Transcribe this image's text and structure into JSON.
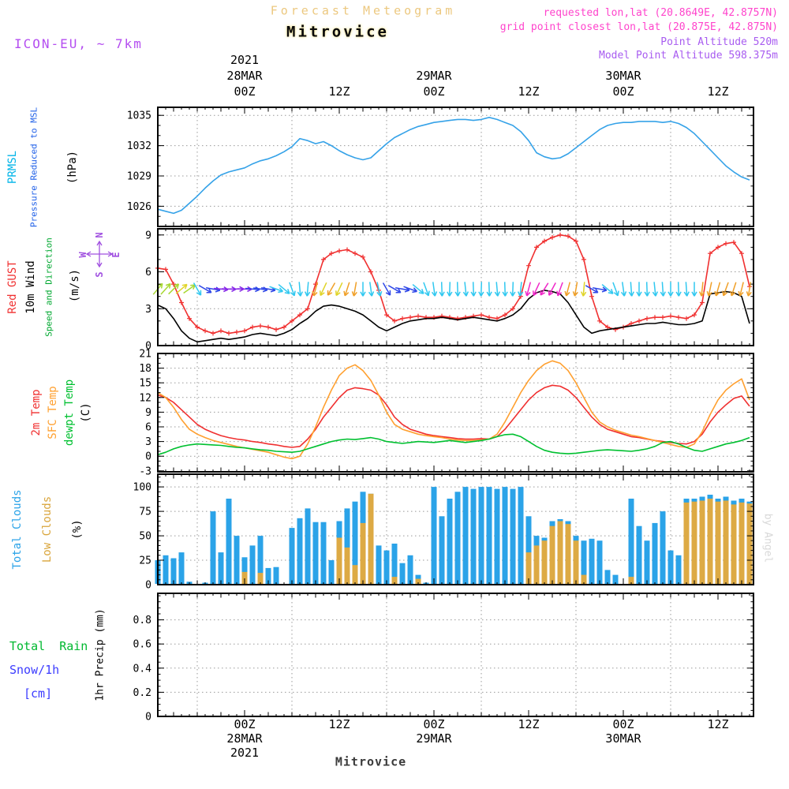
{
  "header": {
    "title": "Forecast Meteogram",
    "station": "Mitrovice",
    "model": "ICON-EU, ~ 7km",
    "requested": "requested lon,lat (20.8649E, 42.8757N)",
    "grid_point": "grid point closest lon,lat (20.875E, 42.875N)",
    "point_altitude": "Point Altitude 520m",
    "model_point_altitude": "Model Point Altitude 598.375m"
  },
  "footer": {
    "station": "Mitrovice",
    "watermark": "by Angel"
  },
  "axes": {
    "year": "2021",
    "x_unit": "hours from 28MAR2021 00Z",
    "time_ticks": [
      {
        "t": 0,
        "label": "00Z"
      },
      {
        "t": 12,
        "label": "12Z"
      },
      {
        "t": 24,
        "label": "00Z"
      },
      {
        "t": 36,
        "label": "12Z"
      },
      {
        "t": 48,
        "label": "00Z"
      },
      {
        "t": 60,
        "label": "12Z"
      }
    ],
    "date_ticks": [
      {
        "t": 0,
        "label": "28MAR"
      },
      {
        "t": 24,
        "label": "29MAR"
      },
      {
        "t": 48,
        "label": "30MAR"
      }
    ]
  },
  "labels": {
    "pressure": {
      "l1": "PRMSL",
      "l2": "Pressure Reduced to MSL",
      "unit": "(hPa)"
    },
    "wind": {
      "l1": "Red GUST",
      "l2": "10m Wind",
      "l3": "Speed and Direction",
      "unit": "(m/s)",
      "compass": {
        "n": "N",
        "e": "E",
        "s": "S",
        "w": "W"
      }
    },
    "temp": {
      "l1": "2m Temp",
      "l2": "SFC Temp",
      "l3": "dewpt Temp",
      "unit": "(C)"
    },
    "clouds": {
      "l1": "Total Clouds",
      "l2": "Low Clouds",
      "unit": "(%)"
    },
    "precip": {
      "l1": "Total  Rain",
      "l2": "Snow/1h",
      "l3": "[cm]",
      "axis": "1hr Precip (mm)"
    }
  },
  "colors": {
    "background": "#ffffff",
    "pressure_line": "#35a2e8",
    "gust": "#f03030",
    "wind_speed": "#000000",
    "temp_2m": "#f03030",
    "temp_sfc": "#ffa030",
    "temp_dewpt": "#00c030",
    "total_clouds": "#2ba3e8",
    "low_clouds": "#ddaa44",
    "rain": "#00b830",
    "snow": "#3c3cff",
    "magenta_header": "#ff44cc",
    "purple_header": "#a85cf0",
    "model_label": "#b44df0",
    "title_tan": "#ecc87f",
    "compass": "#a050e0",
    "watermark": "#d9d9d9"
  },
  "chart_data": [
    {
      "id": "pressure",
      "type": "line",
      "title": "PRMSL Pressure Reduced to MSL",
      "ylabel": "(hPa)",
      "x_start_hour": -11,
      "x_step_hours": 1,
      "ylim": [
        1024,
        1035.8
      ],
      "yticks": [
        1026,
        1029,
        1032,
        1035
      ],
      "grid": true,
      "series": [
        {
          "name": "PRMSL",
          "color": "#35a2e8",
          "values": [
            1025.7,
            1025.5,
            1025.3,
            1025.6,
            1026.3,
            1027.0,
            1027.8,
            1028.5,
            1029.1,
            1029.4,
            1029.6,
            1029.8,
            1030.2,
            1030.5,
            1030.7,
            1031.0,
            1031.4,
            1031.9,
            1032.7,
            1032.5,
            1032.2,
            1032.4,
            1032.0,
            1031.5,
            1031.1,
            1030.8,
            1030.6,
            1030.8,
            1031.5,
            1032.2,
            1032.8,
            1033.2,
            1033.6,
            1033.9,
            1034.1,
            1034.3,
            1034.4,
            1034.5,
            1034.6,
            1034.6,
            1034.5,
            1034.6,
            1034.8,
            1034.6,
            1034.3,
            1034.0,
            1033.4,
            1032.5,
            1031.3,
            1030.9,
            1030.7,
            1030.8,
            1031.2,
            1031.8,
            1032.4,
            1033.0,
            1033.6,
            1034.0,
            1034.2,
            1034.3,
            1034.3,
            1034.4,
            1034.4,
            1034.4,
            1034.3,
            1034.4,
            1034.2,
            1033.8,
            1033.2,
            1032.4,
            1031.6,
            1030.8,
            1030.0,
            1029.4,
            1028.9,
            1028.6
          ]
        }
      ]
    },
    {
      "id": "wind",
      "type": "line",
      "title": "10m Wind Speed, Gust and Direction",
      "ylabel": "(m/s)",
      "x_start_hour": -11,
      "x_step_hours": 1,
      "ylim": [
        0,
        9.5
      ],
      "yticks": [
        0,
        3,
        6,
        9
      ],
      "grid": true,
      "series": [
        {
          "name": "Wind Gust",
          "color": "#f03030",
          "marker": "+",
          "values": [
            6.3,
            6.2,
            5.0,
            3.5,
            2.2,
            1.5,
            1.2,
            1.0,
            1.2,
            1.0,
            1.1,
            1.2,
            1.5,
            1.6,
            1.5,
            1.3,
            1.5,
            2.0,
            2.5,
            3.0,
            5.0,
            7.0,
            7.5,
            7.7,
            7.8,
            7.5,
            7.2,
            6.0,
            4.5,
            2.5,
            2.0,
            2.2,
            2.3,
            2.4,
            2.3,
            2.3,
            2.4,
            2.3,
            2.2,
            2.3,
            2.4,
            2.5,
            2.3,
            2.2,
            2.5,
            3.0,
            4.0,
            6.5,
            8.0,
            8.5,
            8.8,
            9.0,
            8.9,
            8.5,
            7.0,
            4.0,
            2.0,
            1.5,
            1.3,
            1.5,
            1.8,
            2.0,
            2.2,
            2.3,
            2.3,
            2.4,
            2.3,
            2.2,
            2.5,
            3.5,
            7.5,
            8.0,
            8.3,
            8.4,
            7.5,
            4.8
          ]
        },
        {
          "name": "10m Wind Speed",
          "color": "#000000",
          "values": [
            3.3,
            3.0,
            2.2,
            1.2,
            0.6,
            0.3,
            0.4,
            0.5,
            0.6,
            0.5,
            0.6,
            0.7,
            0.9,
            1.0,
            0.9,
            0.8,
            1.0,
            1.3,
            1.8,
            2.2,
            2.8,
            3.2,
            3.3,
            3.2,
            3.0,
            2.8,
            2.5,
            2.0,
            1.5,
            1.2,
            1.5,
            1.8,
            2.0,
            2.1,
            2.2,
            2.2,
            2.3,
            2.2,
            2.1,
            2.2,
            2.3,
            2.2,
            2.1,
            2.0,
            2.2,
            2.5,
            3.0,
            3.8,
            4.3,
            4.5,
            4.4,
            4.2,
            3.5,
            2.5,
            1.5,
            1.0,
            1.2,
            1.3,
            1.4,
            1.5,
            1.6,
            1.7,
            1.8,
            1.8,
            1.9,
            1.8,
            1.7,
            1.7,
            1.8,
            2.0,
            4.2,
            4.3,
            4.4,
            4.3,
            4.0,
            1.8
          ]
        }
      ],
      "wind_arrows": {
        "start_hour": -11,
        "step_hours": 1,
        "plot_value_mps": 4.6,
        "rotation_note": "degrees clockwise, 0 = arrow points up (toward N)",
        "palette": {
          "g": "#a8d832",
          "y": "#e0d428",
          "o": "#f0a028",
          "c": "#30c8f0",
          "b": "#3048e8",
          "v": "#8828e8",
          "m": "#f028c8"
        },
        "rotations": [
          40,
          42,
          45,
          50,
          55,
          150,
          120,
          100,
          95,
          92,
          90,
          92,
          95,
          98,
          100,
          110,
          130,
          160,
          175,
          185,
          195,
          205,
          210,
          205,
          198,
          190,
          180,
          172,
          168,
          150,
          120,
          100,
          110,
          130,
          160,
          172,
          178,
          182,
          178,
          174,
          178,
          182,
          178,
          175,
          178,
          182,
          186,
          195,
          205,
          212,
          208,
          200,
          195,
          190,
          185,
          120,
          100,
          130,
          160,
          172,
          176,
          180,
          178,
          174,
          176,
          180,
          178,
          176,
          180,
          186,
          192,
          196,
          200,
          198,
          194,
          190
        ],
        "colors": "gggyg cbbvv vvbbb ccccc oyoyo occcb bbbcc ccccc ccccc ccmmm mmooy bbccc ccccc cccco ooooo o"
      }
    },
    {
      "id": "temp",
      "type": "line",
      "title": "2m / Surface / Dewpoint Temperature",
      "ylabel": "(C)",
      "x_start_hour": -11,
      "x_step_hours": 1,
      "ylim": [
        -3.2,
        21
      ],
      "yticks": [
        -3,
        0,
        3,
        6,
        9,
        12,
        15,
        18,
        21
      ],
      "grid": true,
      "series": [
        {
          "name": "2m Temp",
          "color": "#f03030",
          "values": [
            12.5,
            12.0,
            11.0,
            9.5,
            8.0,
            6.5,
            5.5,
            4.8,
            4.2,
            3.8,
            3.5,
            3.3,
            3.0,
            2.8,
            2.5,
            2.3,
            2.0,
            1.8,
            2.0,
            3.5,
            5.5,
            8.0,
            10.0,
            12.0,
            13.5,
            14.0,
            13.8,
            13.5,
            12.5,
            10.5,
            8.0,
            6.5,
            5.5,
            5.0,
            4.5,
            4.2,
            4.0,
            3.8,
            3.6,
            3.5,
            3.5,
            3.6,
            3.5,
            4.0,
            5.5,
            7.5,
            9.5,
            11.5,
            13.0,
            14.0,
            14.5,
            14.3,
            13.5,
            12.0,
            10.0,
            8.0,
            6.5,
            5.5,
            5.0,
            4.5,
            4.0,
            3.8,
            3.5,
            3.2,
            3.0,
            2.8,
            2.6,
            2.5,
            3.0,
            4.5,
            7.0,
            9.0,
            10.5,
            11.8,
            12.3,
            10.2
          ]
        },
        {
          "name": "SFC Temp",
          "color": "#ffa030",
          "values": [
            13.0,
            12.0,
            10.0,
            7.5,
            5.5,
            4.5,
            3.8,
            3.2,
            2.8,
            2.4,
            2.0,
            1.7,
            1.4,
            1.1,
            0.8,
            0.3,
            -0.2,
            -0.5,
            0.0,
            2.5,
            6.0,
            10.0,
            13.5,
            16.5,
            18.0,
            18.7,
            17.5,
            15.5,
            12.5,
            9.0,
            6.5,
            5.5,
            5.0,
            4.5,
            4.2,
            4.0,
            3.8,
            3.5,
            3.3,
            3.2,
            3.2,
            3.3,
            3.5,
            4.5,
            7.0,
            10.0,
            13.0,
            15.5,
            17.5,
            18.8,
            19.5,
            19.0,
            17.5,
            15.0,
            12.0,
            9.0,
            7.0,
            6.0,
            5.3,
            4.8,
            4.3,
            4.0,
            3.6,
            3.2,
            2.8,
            2.4,
            2.0,
            1.8,
            2.5,
            5.0,
            8.5,
            11.5,
            13.5,
            14.8,
            15.8,
            11.5
          ]
        },
        {
          "name": "dewpt Temp",
          "color": "#00c030",
          "values": [
            0.3,
            0.8,
            1.5,
            2.0,
            2.3,
            2.5,
            2.4,
            2.3,
            2.2,
            2.0,
            1.8,
            1.7,
            1.5,
            1.3,
            1.2,
            1.0,
            0.9,
            0.8,
            1.0,
            1.5,
            2.0,
            2.5,
            3.0,
            3.3,
            3.5,
            3.4,
            3.6,
            3.8,
            3.5,
            3.0,
            2.8,
            2.6,
            2.8,
            3.0,
            2.9,
            2.8,
            3.0,
            3.2,
            3.0,
            2.8,
            3.0,
            3.2,
            3.5,
            4.0,
            4.4,
            4.5,
            4.0,
            3.0,
            2.0,
            1.2,
            0.8,
            0.6,
            0.5,
            0.6,
            0.8,
            1.0,
            1.2,
            1.3,
            1.2,
            1.1,
            1.0,
            1.2,
            1.5,
            2.0,
            2.8,
            3.0,
            2.5,
            1.8,
            1.2,
            1.0,
            1.5,
            2.0,
            2.5,
            2.8,
            3.2,
            3.8
          ]
        }
      ]
    },
    {
      "id": "clouds",
      "type": "bar",
      "title": "Cloud Cover",
      "ylabel": "(%)",
      "x_start_hour": -11,
      "x_step_hours": 1,
      "ylim": [
        0,
        113
      ],
      "yticks": [
        0,
        25,
        50,
        75,
        100
      ],
      "grid": true,
      "series": [
        {
          "name": "Total Clouds",
          "color": "#2ba3e8",
          "values": [
            25,
            30,
            27,
            33,
            3,
            0,
            2,
            75,
            33,
            88,
            50,
            28,
            40,
            50,
            17,
            18,
            0,
            58,
            68,
            78,
            64,
            64,
            25,
            65,
            78,
            85,
            95,
            93,
            40,
            35,
            42,
            22,
            30,
            10,
            2,
            100,
            70,
            88,
            95,
            100,
            98,
            100,
            100,
            98,
            100,
            98,
            100,
            70,
            50,
            48,
            65,
            67,
            65,
            50,
            45,
            47,
            45,
            15,
            10,
            0,
            88,
            60,
            45,
            63,
            75,
            35,
            30,
            88,
            88,
            90,
            92,
            88,
            90,
            86,
            88,
            85
          ]
        },
        {
          "name": "Low Clouds",
          "color": "#ddaa44",
          "values": [
            0,
            0,
            0,
            0,
            0,
            0,
            0,
            0,
            0,
            0,
            0,
            13,
            0,
            12,
            0,
            0,
            0,
            0,
            0,
            0,
            0,
            0,
            0,
            48,
            38,
            20,
            63,
            93,
            0,
            0,
            8,
            0,
            0,
            6,
            0,
            0,
            0,
            0,
            0,
            0,
            0,
            0,
            0,
            0,
            0,
            0,
            0,
            33,
            40,
            45,
            60,
            65,
            62,
            45,
            10,
            0,
            0,
            0,
            0,
            0,
            8,
            0,
            0,
            0,
            0,
            0,
            0,
            84,
            85,
            86,
            88,
            85,
            86,
            82,
            84,
            83
          ]
        }
      ]
    },
    {
      "id": "precip",
      "type": "bar",
      "title": "1hr Precip (mm)",
      "ylabel": "1hr Precip (mm)",
      "x_start_hour": -11,
      "x_step_hours": 1,
      "ylim": [
        0,
        1.02
      ],
      "yticks": [
        0,
        0.2,
        0.4,
        0.6,
        0.8
      ],
      "grid": true,
      "note": "no precipitation shown in forecast period (all values zero)",
      "series": [
        {
          "name": "Total Rain (mm)",
          "color": "#00b830",
          "values": []
        },
        {
          "name": "Snow/1h (cm)",
          "color": "#3c3cff",
          "values": []
        }
      ]
    }
  ]
}
